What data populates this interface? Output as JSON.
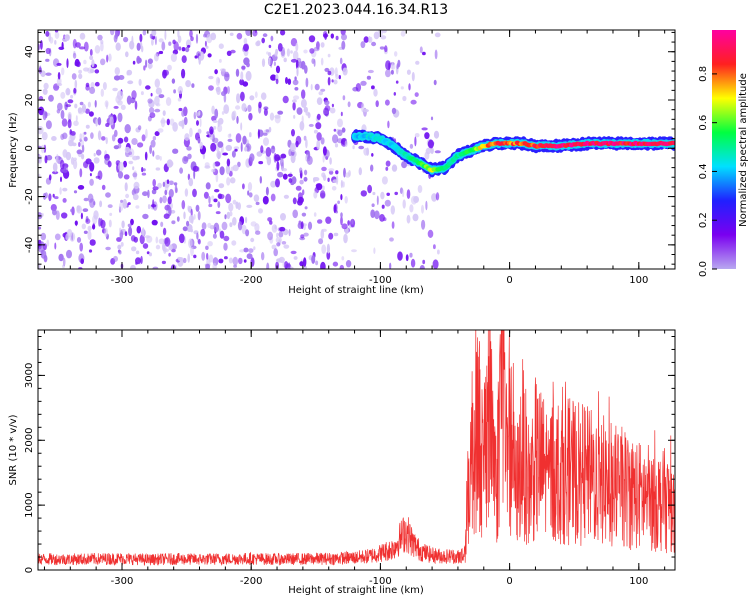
{
  "figure_title": "C2E1.2023.044.16.34.R13",
  "chart_data": [
    {
      "type": "heatmap",
      "xlabel": "Height of straight line (km)",
      "ylabel": "Frequency (Hz)",
      "xlim": [
        -365,
        128
      ],
      "ylim": [
        -50,
        49
      ],
      "xticks": [
        -300,
        -200,
        -100,
        0,
        100
      ],
      "yticks": [
        -40,
        -20,
        0,
        20,
        40
      ],
      "colorbar": {
        "label": "Normalized spectral amplitude",
        "range": [
          0,
          0.98
        ],
        "ticks": [
          0.0,
          0.2,
          0.4,
          0.6,
          0.8
        ],
        "colormap": [
          "#b8a8f0",
          "#7a00f0",
          "#2020ff",
          "#00e0ff",
          "#00ff40",
          "#ffff00",
          "#ff2020",
          "#ff00a0"
        ]
      },
      "background_noise": {
        "x_range": [
          -365,
          -55
        ],
        "freq_range": [
          -50,
          49
        ],
        "amplitude": 0.1
      },
      "ridge": {
        "x": [
          -120,
          -110,
          -100,
          -90,
          -80,
          -70,
          -60,
          -50,
          -40,
          -30,
          -20,
          -10,
          0,
          10,
          20,
          40,
          60,
          80,
          100,
          128
        ],
        "freq": [
          5,
          5,
          4,
          1,
          -3,
          -6,
          -9,
          -8,
          -3,
          -1,
          1,
          2,
          2,
          2,
          1,
          1,
          2,
          2,
          2,
          2
        ],
        "amplitude": [
          0.4,
          0.45,
          0.45,
          0.45,
          0.5,
          0.55,
          0.7,
          0.5,
          0.5,
          0.6,
          0.8,
          0.85,
          0.85,
          0.85,
          0.9,
          0.95,
          0.95,
          0.95,
          0.95,
          0.95
        ]
      }
    },
    {
      "type": "line",
      "xlabel": "Height of straight line (km)",
      "ylabel": "SNR (10 * v/v)",
      "xlim": [
        -365,
        128
      ],
      "ylim": [
        0,
        3700
      ],
      "xticks": [
        -300,
        -200,
        -100,
        0,
        100
      ],
      "yticks": [
        0,
        1000,
        2000,
        3000
      ],
      "color": "#f03030",
      "x": [
        -365,
        -340,
        -320,
        -300,
        -280,
        -260,
        -240,
        -220,
        -200,
        -180,
        -160,
        -140,
        -120,
        -110,
        -100,
        -90,
        -85,
        -80,
        -75,
        -70,
        -65,
        -60,
        -55,
        -50,
        -45,
        -40,
        -35,
        -32,
        -30,
        -25,
        -20,
        -15,
        -10,
        -7,
        -5,
        -2,
        0,
        5,
        10,
        15,
        20,
        30,
        40,
        50,
        60,
        70,
        80,
        90,
        100,
        110,
        120,
        128
      ],
      "values": [
        170,
        165,
        170,
        175,
        160,
        170,
        165,
        170,
        175,
        165,
        170,
        175,
        190,
        210,
        260,
        330,
        480,
        600,
        420,
        310,
        260,
        230,
        220,
        210,
        215,
        200,
        230,
        1200,
        1800,
        2400,
        1500,
        2700,
        1200,
        2900,
        3500,
        1400,
        2100,
        1200,
        1900,
        1300,
        1700,
        1500,
        1550,
        1500,
        1450,
        1400,
        1300,
        1250,
        1150,
        1100,
        1050,
        1000
      ]
    }
  ]
}
